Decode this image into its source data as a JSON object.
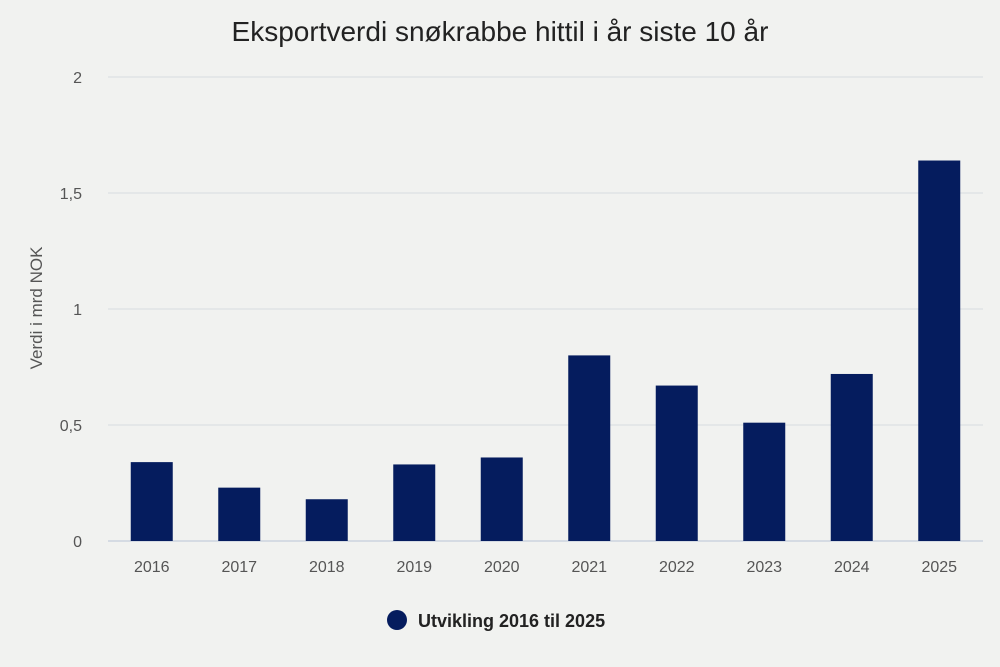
{
  "chart_data": {
    "type": "bar",
    "title": "Eksportverdi snøkrabbe hittil i år siste 10 år",
    "xlabel": "",
    "ylabel": "Verdi i mrd NOK",
    "categories": [
      "2016",
      "2017",
      "2018",
      "2019",
      "2020",
      "2021",
      "2022",
      "2023",
      "2024",
      "2025"
    ],
    "series": [
      {
        "name": "Utvikling 2016 til 2025",
        "values": [
          0.34,
          0.23,
          0.18,
          0.33,
          0.36,
          0.8,
          0.67,
          0.51,
          0.72,
          1.64
        ]
      }
    ],
    "ylim": [
      0,
      2
    ],
    "y_ticks": [
      {
        "value": 0,
        "label": "0"
      },
      {
        "value": 0.5,
        "label": "0,5"
      },
      {
        "value": 1,
        "label": "1"
      },
      {
        "value": 1.5,
        "label": "1,5"
      },
      {
        "value": 2,
        "label": "2"
      }
    ],
    "grid": true,
    "legend_position": "bottom-center",
    "colors": {
      "bar": "#051c5e",
      "grid": "#d8dcdf",
      "baseline": "#b9c4d6",
      "background": "#f1f2f0"
    }
  }
}
